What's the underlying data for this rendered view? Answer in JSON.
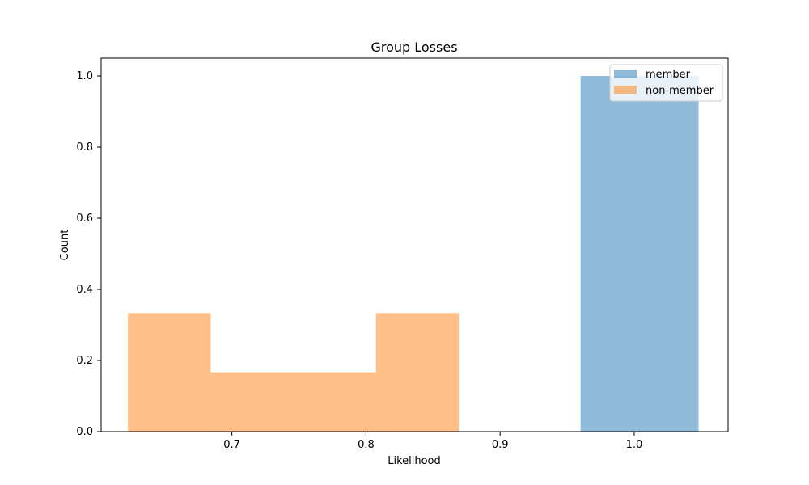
{
  "chart_data": {
    "type": "bar",
    "title": "Group Losses",
    "xlabel": "Likelihood",
    "ylabel": "Count",
    "xlim": [
      0.6025,
      1.07
    ],
    "ylim": [
      0,
      1.05
    ],
    "xticks": [
      "0.7",
      "0.8",
      "0.9",
      "1.0"
    ],
    "xtick_values": [
      0.7,
      0.8,
      0.9,
      1.0
    ],
    "yticks": [
      "0.0",
      "0.2",
      "0.4",
      "0.6",
      "0.8",
      "1.0"
    ],
    "ytick_values": [
      0.0,
      0.2,
      0.4,
      0.6,
      0.8,
      1.0
    ],
    "grid": false,
    "legend_position": "top-right",
    "series": [
      {
        "name": "member",
        "color": "#1f77b4",
        "opacity": 0.5,
        "bins": [
          {
            "x0": 0.96,
            "x1": 1.048,
            "value": 1.0
          }
        ]
      },
      {
        "name": "non-member",
        "color": "#ff7f0e",
        "opacity": 0.5,
        "bins": [
          {
            "x0": 0.6225,
            "x1": 0.6842,
            "value": 0.3333
          },
          {
            "x0": 0.6842,
            "x1": 0.7458,
            "value": 0.1667
          },
          {
            "x0": 0.7458,
            "x1": 0.8075,
            "value": 0.1667
          },
          {
            "x0": 0.8075,
            "x1": 0.8692,
            "value": 0.3333
          }
        ]
      }
    ]
  }
}
